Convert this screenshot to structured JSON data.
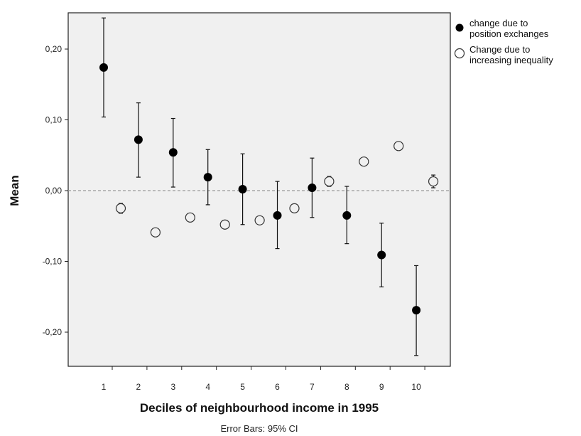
{
  "chart_data": {
    "type": "scatter",
    "xlabel": "Deciles of neighbourhood income in 1995",
    "ylabel": "Mean",
    "footnote": "Error Bars: 95% CI",
    "categories": [
      "1",
      "2",
      "3",
      "4",
      "5",
      "6",
      "7",
      "8",
      "9",
      "10"
    ],
    "yticks": [
      0.2,
      0.1,
      0.0,
      -0.1,
      -0.2
    ],
    "ytick_labels": [
      "0,20",
      "0,10",
      "0,00",
      "-0,10",
      "-0,20"
    ],
    "ylim": [
      -0.25,
      0.25
    ],
    "grid": false,
    "reference_line": 0.0,
    "legend_position": "right",
    "series": [
      {
        "name": "change due to position exchanges",
        "name_lines": [
          "change due to",
          "position exchanges"
        ],
        "marker": "filled",
        "values": [
          0.174,
          0.072,
          0.054,
          0.019,
          0.002,
          -0.035,
          0.004,
          -0.035,
          -0.091,
          -0.169
        ],
        "ci_low": [
          0.104,
          0.019,
          0.005,
          -0.02,
          -0.048,
          -0.082,
          -0.038,
          -0.075,
          -0.136,
          -0.233
        ],
        "ci_high": [
          0.244,
          0.124,
          0.102,
          0.058,
          0.052,
          0.013,
          0.046,
          0.006,
          -0.046,
          -0.106
        ]
      },
      {
        "name": "Change due to increasing inequality",
        "name_lines": [
          "Change due to",
          "increasing inequality"
        ],
        "marker": "open",
        "values": [
          -0.025,
          -0.059,
          -0.038,
          -0.048,
          -0.042,
          -0.025,
          0.013,
          0.041,
          0.063,
          0.013
        ],
        "ci_low": [
          -0.032,
          -0.062,
          -0.041,
          -0.051,
          -0.045,
          -0.028,
          0.006,
          0.037,
          0.059,
          0.004
        ],
        "ci_high": [
          -0.018,
          -0.056,
          -0.035,
          -0.045,
          -0.039,
          -0.022,
          0.02,
          0.045,
          0.067,
          0.022
        ]
      }
    ]
  },
  "colors": {
    "plot_background": "#f0f0f0",
    "marker": "#000000",
    "reference_line": "#999999"
  }
}
